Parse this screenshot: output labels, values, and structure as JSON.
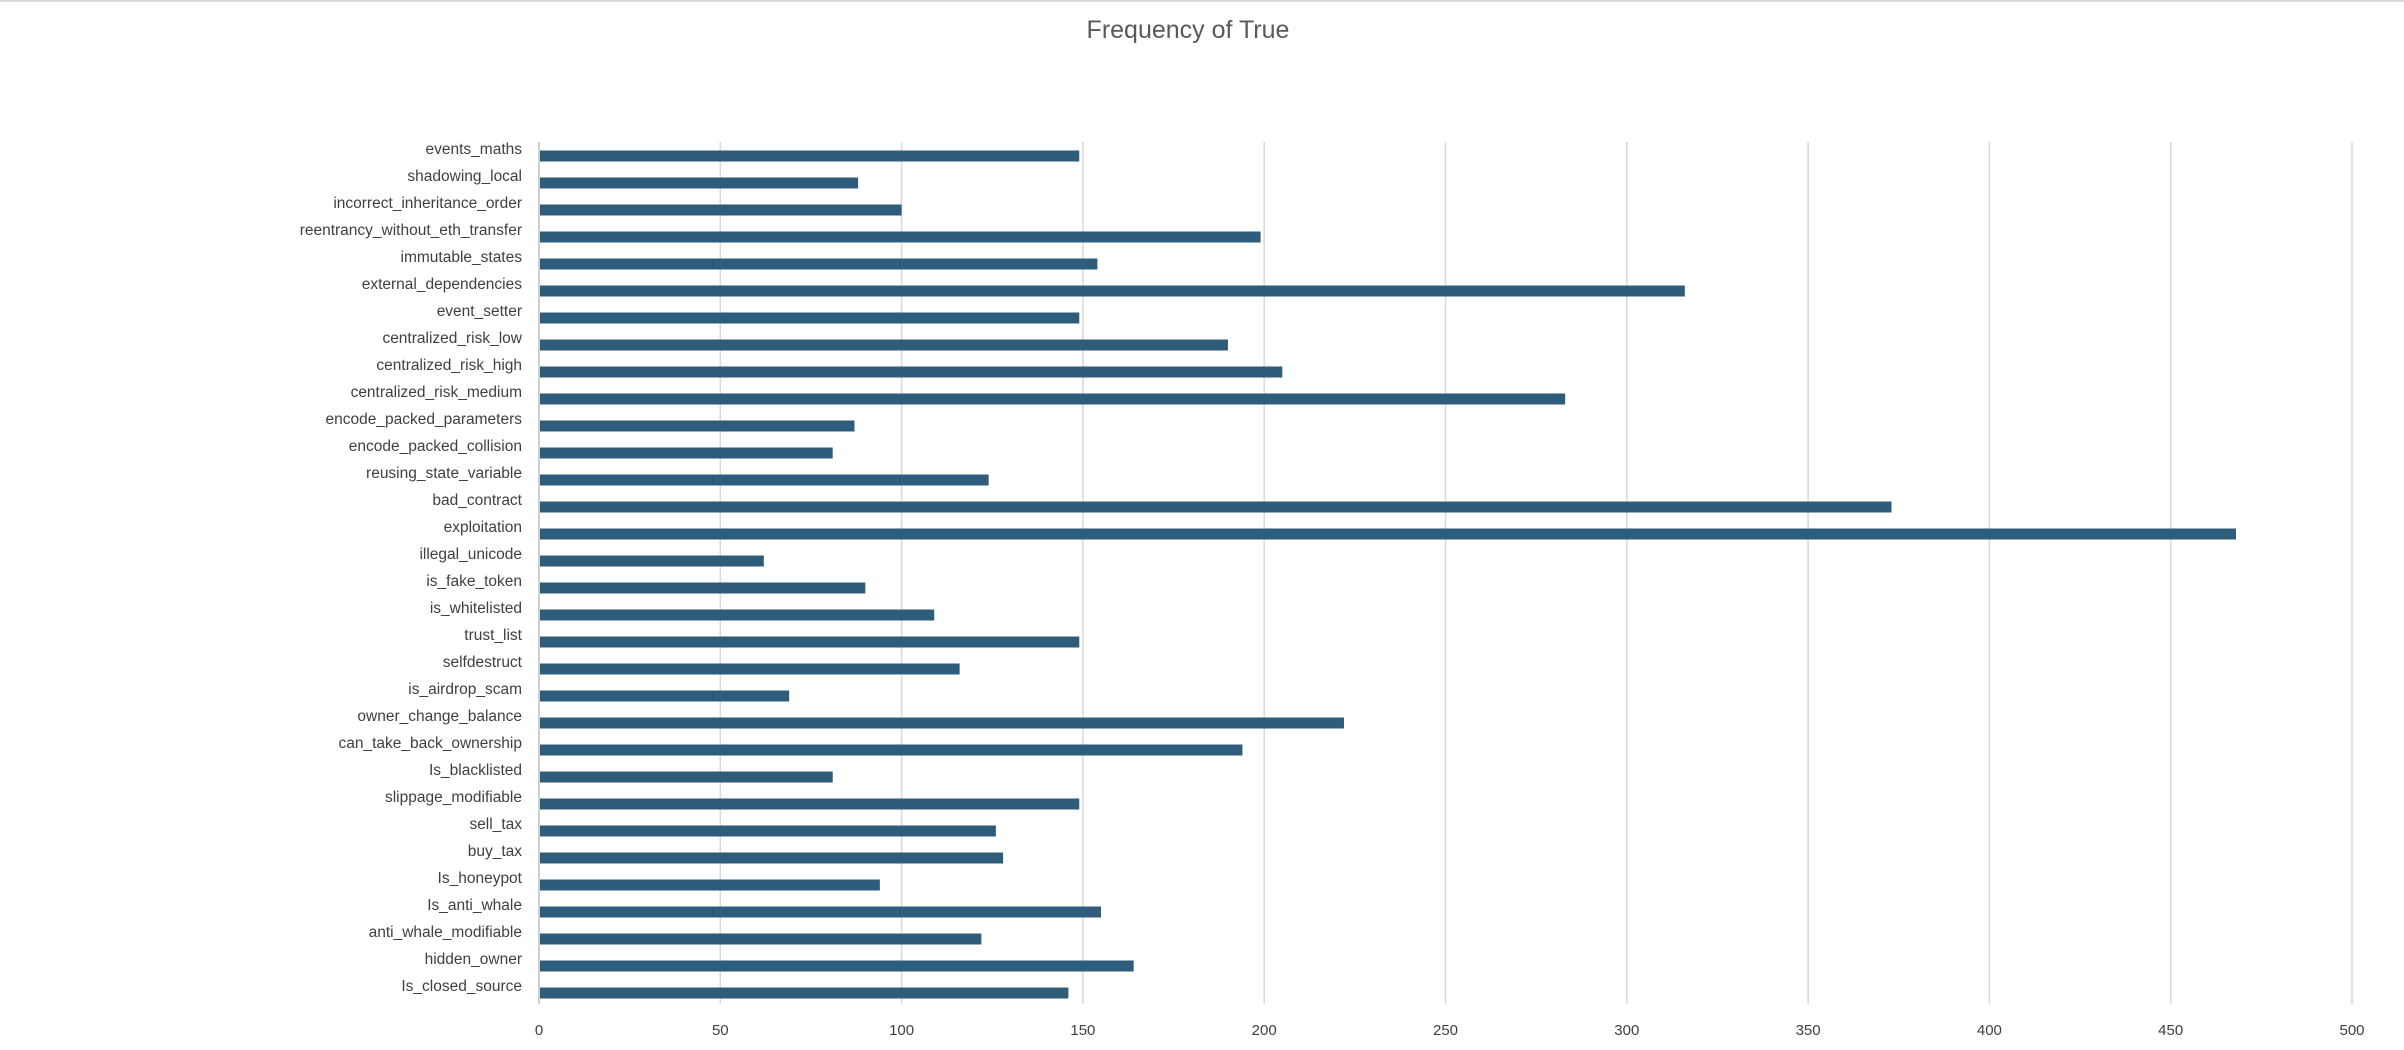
{
  "chart_data": {
    "type": "bar",
    "orientation": "horizontal",
    "title": "Frequency of True",
    "xlabel": "",
    "ylabel": "",
    "xlim": [
      0,
      500
    ],
    "x_ticks": [
      0,
      50,
      100,
      150,
      200,
      250,
      300,
      350,
      400,
      450,
      500
    ],
    "grid": true,
    "legend": "none",
    "bar_color": "#2E5C7A",
    "categories": [
      "events_maths",
      "shadowing_local",
      "incorrect_inheritance_order",
      "reentrancy_without_eth_transfer",
      "immutable_states",
      "external_dependencies",
      "event_setter",
      "centralized_risk_low",
      "centralized_risk_high",
      "centralized_risk_medium",
      "encode_packed_parameters",
      "encode_packed_collision",
      "reusing_state_variable",
      "bad_contract",
      "exploitation",
      "illegal_unicode",
      "is_fake_token",
      "is_whitelisted",
      "trust_list",
      "selfdestruct",
      "is_airdrop_scam",
      "owner_change_balance",
      "can_take_back_ownership",
      "Is_blacklisted",
      "slippage_modifiable",
      "sell_tax",
      "buy_tax",
      "Is_honeypot",
      "Is_anti_whale",
      "anti_whale_modifiable",
      "hidden_owner",
      "Is_closed_source"
    ],
    "values": [
      149,
      88,
      100,
      199,
      154,
      316,
      149,
      190,
      205,
      283,
      87,
      81,
      124,
      373,
      468,
      62,
      90,
      109,
      149,
      116,
      69,
      222,
      194,
      81,
      149,
      126,
      128,
      94,
      155,
      122,
      164,
      146
    ]
  }
}
